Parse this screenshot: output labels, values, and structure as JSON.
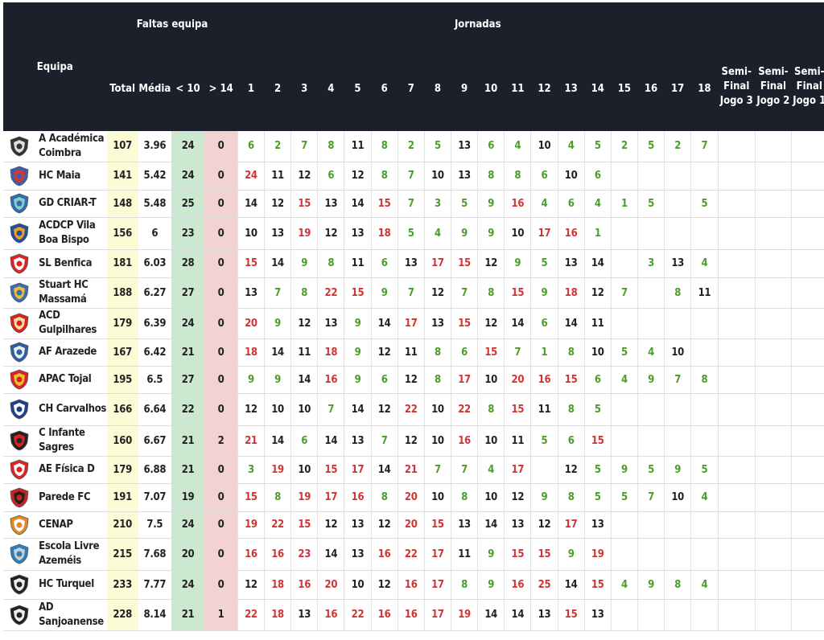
{
  "headers": {
    "equipa": "Equipa",
    "faltas": "Faltas equipa",
    "jornadas": "Jornadas",
    "total": "Total",
    "media": "Média",
    "lt10": "< 10",
    "gt14": "> 14",
    "rounds": [
      "1",
      "2",
      "3",
      "4",
      "5",
      "6",
      "7",
      "8",
      "9",
      "10",
      "11",
      "12",
      "13",
      "14",
      "15",
      "16",
      "17",
      "18"
    ],
    "semis": [
      "Semi-Final Jogo 3",
      "Semi-Final Jogo 2",
      "Semi-Final Jogo 1"
    ]
  },
  "colors": {
    "header_bg": "#1b202a",
    "green": "#4b9d2a",
    "red": "#d23333",
    "total_bg": "#fbfbd5",
    "lt10_bg": "#cde8d1",
    "gt14_bg": "#f3d2d2"
  },
  "rows": [
    {
      "name": "A Académica Coimbra",
      "total": "107",
      "media": "3.96",
      "lt10": "24",
      "gt14": "0",
      "games": [
        "6",
        "2",
        "7",
        "8",
        "11",
        "8",
        "2",
        "5",
        "13",
        "6",
        "4",
        "10",
        "4",
        "5",
        "2",
        "5",
        "2",
        "7"
      ],
      "logo": "academica-logo-icon"
    },
    {
      "name": "HC Maia",
      "total": "141",
      "media": "5.42",
      "lt10": "24",
      "gt14": "0",
      "games": [
        "24",
        "11",
        "12",
        "6",
        "12",
        "8",
        "7",
        "10",
        "13",
        "8",
        "8",
        "6",
        "10",
        "6",
        "",
        "",
        "",
        ""
      ],
      "logo": "hc-maia-logo-icon"
    },
    {
      "name": "GD CRIAR-T",
      "total": "148",
      "media": "5.48",
      "lt10": "25",
      "gt14": "0",
      "games": [
        "14",
        "12",
        "15",
        "13",
        "14",
        "15",
        "7",
        "3",
        "5",
        "9",
        "16",
        "4",
        "6",
        "4",
        "1",
        "5",
        "",
        "5"
      ],
      "logo": "criar-t-logo-icon"
    },
    {
      "name": "ACDCP Vila Boa Bispo",
      "total": "156",
      "media": "6",
      "lt10": "23",
      "gt14": "0",
      "games": [
        "10",
        "13",
        "19",
        "12",
        "13",
        "18",
        "5",
        "4",
        "9",
        "9",
        "10",
        "17",
        "16",
        "1",
        "",
        "",
        "",
        ""
      ],
      "logo": "acdcp-logo-icon"
    },
    {
      "name": "SL Benfica",
      "total": "181",
      "media": "6.03",
      "lt10": "28",
      "gt14": "0",
      "games": [
        "15",
        "14",
        "9",
        "8",
        "11",
        "6",
        "13",
        "17",
        "15",
        "12",
        "9",
        "5",
        "13",
        "14",
        "",
        "3",
        "13",
        "4"
      ],
      "logo": "benfica-logo-icon"
    },
    {
      "name": "Stuart HC Massamá",
      "total": "188",
      "media": "6.27",
      "lt10": "27",
      "gt14": "0",
      "games": [
        "13",
        "7",
        "8",
        "22",
        "15",
        "9",
        "7",
        "12",
        "7",
        "8",
        "15",
        "9",
        "18",
        "12",
        "7",
        "",
        "8",
        "11"
      ],
      "logo": "stuart-logo-icon"
    },
    {
      "name": "ACD Gulpilhares",
      "total": "179",
      "media": "6.39",
      "lt10": "24",
      "gt14": "0",
      "games": [
        "20",
        "9",
        "12",
        "13",
        "9",
        "14",
        "17",
        "13",
        "15",
        "12",
        "14",
        "6",
        "14",
        "11",
        "",
        "",
        "",
        ""
      ],
      "logo": "gulpilhares-logo-icon"
    },
    {
      "name": "AF Arazede",
      "total": "167",
      "media": "6.42",
      "lt10": "21",
      "gt14": "0",
      "games": [
        "18",
        "14",
        "11",
        "18",
        "9",
        "12",
        "11",
        "8",
        "6",
        "15",
        "7",
        "1",
        "8",
        "10",
        "5",
        "4",
        "10",
        ""
      ],
      "logo": "arazede-logo-icon"
    },
    {
      "name": "APAC Tojal",
      "total": "195",
      "media": "6.5",
      "lt10": "27",
      "gt14": "0",
      "games": [
        "9",
        "9",
        "14",
        "16",
        "9",
        "6",
        "12",
        "8",
        "17",
        "10",
        "20",
        "16",
        "15",
        "6",
        "4",
        "9",
        "7",
        "8"
      ],
      "logo": "apac-logo-icon"
    },
    {
      "name": "CH Carvalhos",
      "total": "166",
      "media": "6.64",
      "lt10": "22",
      "gt14": "0",
      "games": [
        "12",
        "10",
        "10",
        "7",
        "14",
        "12",
        "22",
        "10",
        "22",
        "8",
        "15",
        "11",
        "8",
        "5",
        "",
        "",
        "",
        ""
      ],
      "logo": "carvalhos-logo-icon"
    },
    {
      "name": "C Infante Sagres",
      "total": "160",
      "media": "6.67",
      "lt10": "21",
      "gt14": "2",
      "games": [
        "21",
        "14",
        "6",
        "14",
        "13",
        "7",
        "12",
        "10",
        "16",
        "10",
        "11",
        "5",
        "6",
        "15",
        "",
        "",
        "",
        ""
      ],
      "logo": "sagres-logo-icon"
    },
    {
      "name": "AE Física D",
      "total": "179",
      "media": "6.88",
      "lt10": "21",
      "gt14": "0",
      "games": [
        "3",
        "19",
        "10",
        "15",
        "17",
        "14",
        "21",
        "7",
        "7",
        "4",
        "17",
        "",
        "12",
        "5",
        "9",
        "5",
        "9",
        "5"
      ],
      "logo": "fisica-logo-icon"
    },
    {
      "name": "Parede FC",
      "total": "191",
      "media": "7.07",
      "lt10": "19",
      "gt14": "0",
      "games": [
        "15",
        "8",
        "19",
        "17",
        "16",
        "8",
        "20",
        "10",
        "8",
        "10",
        "12",
        "9",
        "8",
        "5",
        "5",
        "7",
        "10",
        "4"
      ],
      "logo": "parede-logo-icon"
    },
    {
      "name": "CENAP",
      "total": "210",
      "media": "7.5",
      "lt10": "24",
      "gt14": "0",
      "games": [
        "19",
        "22",
        "15",
        "12",
        "13",
        "12",
        "20",
        "15",
        "13",
        "14",
        "13",
        "12",
        "17",
        "13",
        "",
        "",
        "",
        ""
      ],
      "logo": "cenap-logo-icon"
    },
    {
      "name": "Escola Livre Azeméis",
      "total": "215",
      "media": "7.68",
      "lt10": "20",
      "gt14": "0",
      "games": [
        "16",
        "16",
        "23",
        "14",
        "13",
        "16",
        "22",
        "17",
        "11",
        "9",
        "15",
        "15",
        "9",
        "19",
        "",
        "",
        "",
        ""
      ],
      "logo": "escola-livre-logo-icon"
    },
    {
      "name": "HC Turquel",
      "total": "233",
      "media": "7.77",
      "lt10": "24",
      "gt14": "0",
      "games": [
        "12",
        "18",
        "16",
        "20",
        "10",
        "12",
        "16",
        "17",
        "8",
        "9",
        "16",
        "25",
        "14",
        "15",
        "4",
        "9",
        "8",
        "4"
      ],
      "logo": "turquel-logo-icon"
    },
    {
      "name": "AD Sanjoanense",
      "total": "228",
      "media": "8.14",
      "lt10": "21",
      "gt14": "1",
      "games": [
        "22",
        "18",
        "13",
        "16",
        "22",
        "16",
        "16",
        "17",
        "19",
        "14",
        "14",
        "13",
        "15",
        "13",
        "",
        "",
        "",
        ""
      ],
      "logo": "sanjoanense-logo-icon"
    }
  ]
}
